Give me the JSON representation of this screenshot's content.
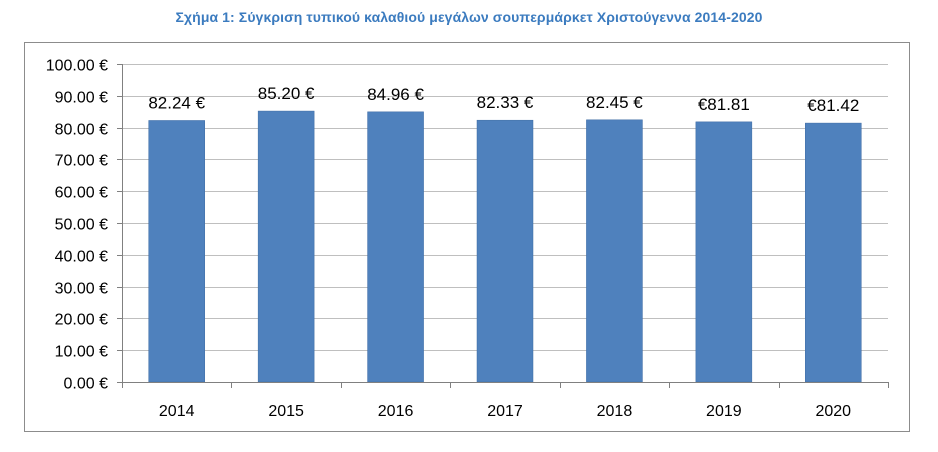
{
  "title": "Σχήμα 1: Σύγκριση τυπικού καλαθιού μεγάλων σουπερμάρκετ Χριστούγεννα 2014-2020",
  "colors": {
    "title": "#3b7bbf",
    "bar": "#4f81bd",
    "bar_edge": "#3c6aa3",
    "grid": "#bfbfbf",
    "axis": "#808080",
    "text": "#000000"
  },
  "chart_data": {
    "type": "bar",
    "title": "Σχήμα 1: Σύγκριση τυπικού καλαθιού μεγάλων σουπερμάρκετ Χριστούγεννα 2014-2020",
    "xlabel": "",
    "ylabel": "",
    "categories": [
      "2014",
      "2015",
      "2016",
      "2017",
      "2018",
      "2019",
      "2020"
    ],
    "values": [
      82.24,
      85.2,
      84.96,
      82.33,
      82.45,
      81.81,
      81.42
    ],
    "data_labels": [
      "82.24 €",
      "85.20 €",
      "84.96 €",
      "82.33 €",
      "82.45 €",
      "€81.81",
      "€81.42"
    ],
    "ylim": [
      0,
      100
    ],
    "yticks": [
      0,
      10,
      20,
      30,
      40,
      50,
      60,
      70,
      80,
      90,
      100
    ],
    "ytick_labels": [
      "0.00 €",
      "10.00 €",
      "20.00 €",
      "30.00 €",
      "40.00 €",
      "50.00 €",
      "60.00 €",
      "70.00 €",
      "80.00 €",
      "90.00 €",
      "100.00 €"
    ],
    "grid": true,
    "legend": "none"
  }
}
